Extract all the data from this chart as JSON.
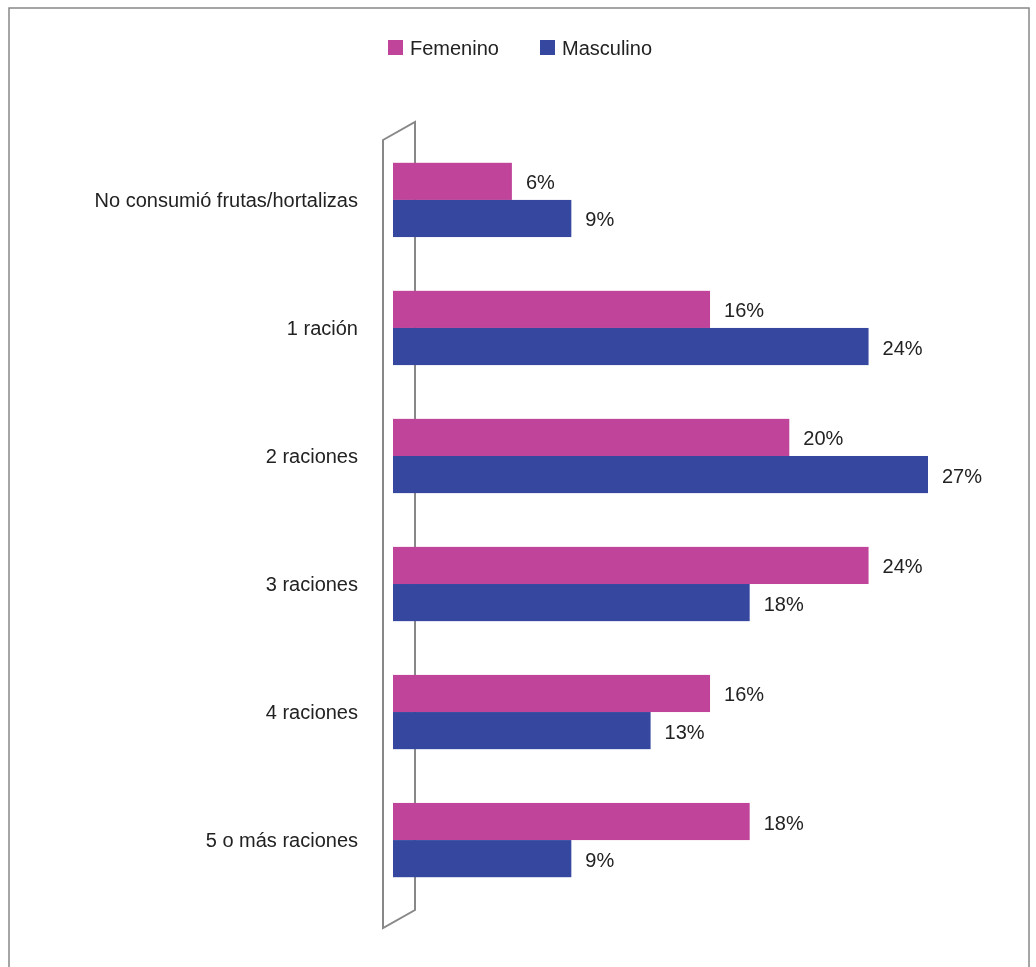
{
  "chart_data": {
    "type": "bar",
    "orientation": "horizontal",
    "categories": [
      "No consumió frutas/hortalizas",
      "1 ración",
      "2 raciones",
      "3 raciones",
      "4 raciones",
      "5 o más raciones"
    ],
    "series": [
      {
        "name": "Femenino",
        "color": "#c0449a",
        "values": [
          6,
          16,
          20,
          24,
          16,
          18
        ],
        "value_labels": [
          "6%",
          "16%",
          "20%",
          "24%",
          "16%",
          "18%"
        ]
      },
      {
        "name": "Masculino",
        "color": "#35479f",
        "values": [
          9,
          24,
          27,
          18,
          13,
          9
        ],
        "value_labels": [
          "9%",
          "24%",
          "27%",
          "18%",
          "13%",
          "9%"
        ]
      }
    ],
    "legend": "top",
    "grid": false
  }
}
